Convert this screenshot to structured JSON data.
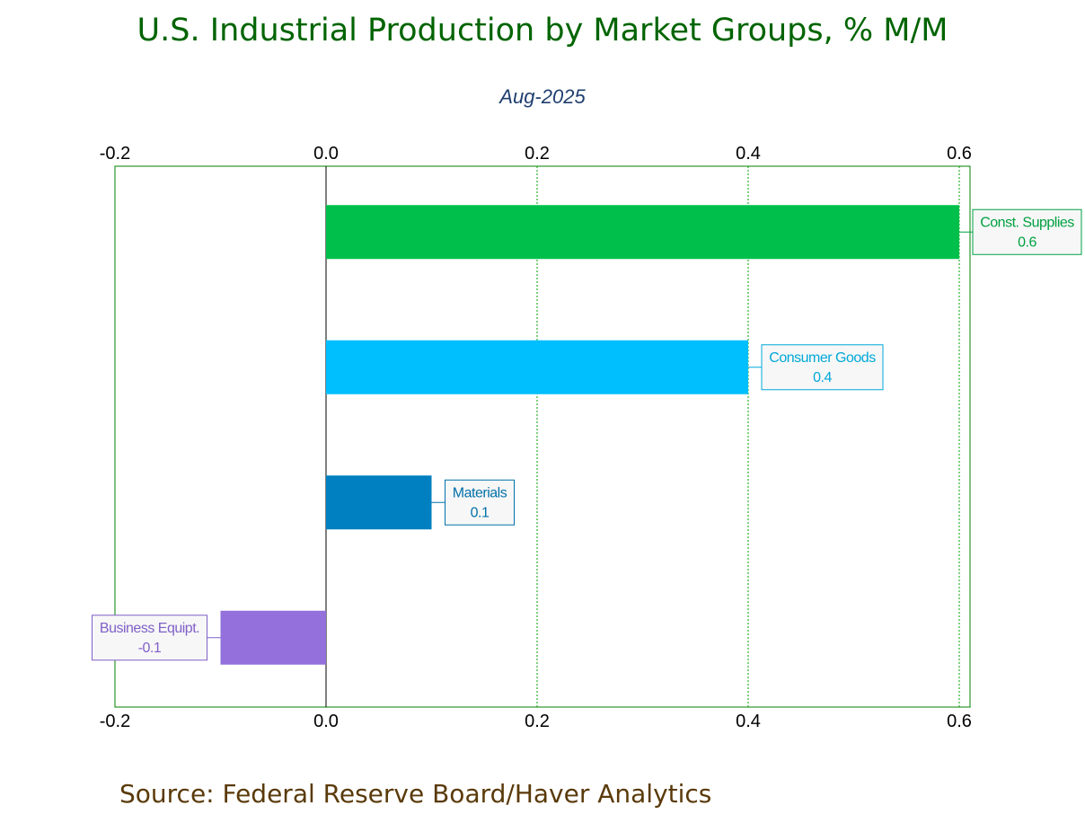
{
  "chart_data": {
    "type": "bar",
    "orientation": "horizontal",
    "title": "U.S. Industrial Production by Market Groups, % M/M",
    "subtitle": "Aug-2025",
    "source": "Source:  Federal Reserve Board/Haver Analytics",
    "xlim": [
      -0.2,
      0.6
    ],
    "ticks": [
      -0.2,
      0.0,
      0.2,
      0.4,
      0.6
    ],
    "tick_labels": [
      "-0.2",
      "0.0",
      "0.2",
      "0.4",
      "0.6"
    ],
    "grid": true,
    "bars": [
      {
        "label": "Const. Supplies",
        "value": 0.6,
        "value_label": "0.6",
        "color": "#00c04b",
        "text_color": "#00a040",
        "callout": "right"
      },
      {
        "label": "Consumer Goods",
        "value": 0.4,
        "value_label": "0.4",
        "color": "#00bfff",
        "text_color": "#00a8d8",
        "callout": "right"
      },
      {
        "label": "Materials",
        "value": 0.1,
        "value_label": "0.1",
        "color": "#0080c0",
        "text_color": "#0070a8",
        "callout": "right"
      },
      {
        "label": "Business Equipt.",
        "value": -0.1,
        "value_label": "-0.1",
        "color": "#9370db",
        "text_color": "#8060c8",
        "callout": "left"
      }
    ],
    "colors": {
      "frame": "#008000",
      "grid": "#00a000",
      "zero_line": "#000000"
    }
  }
}
